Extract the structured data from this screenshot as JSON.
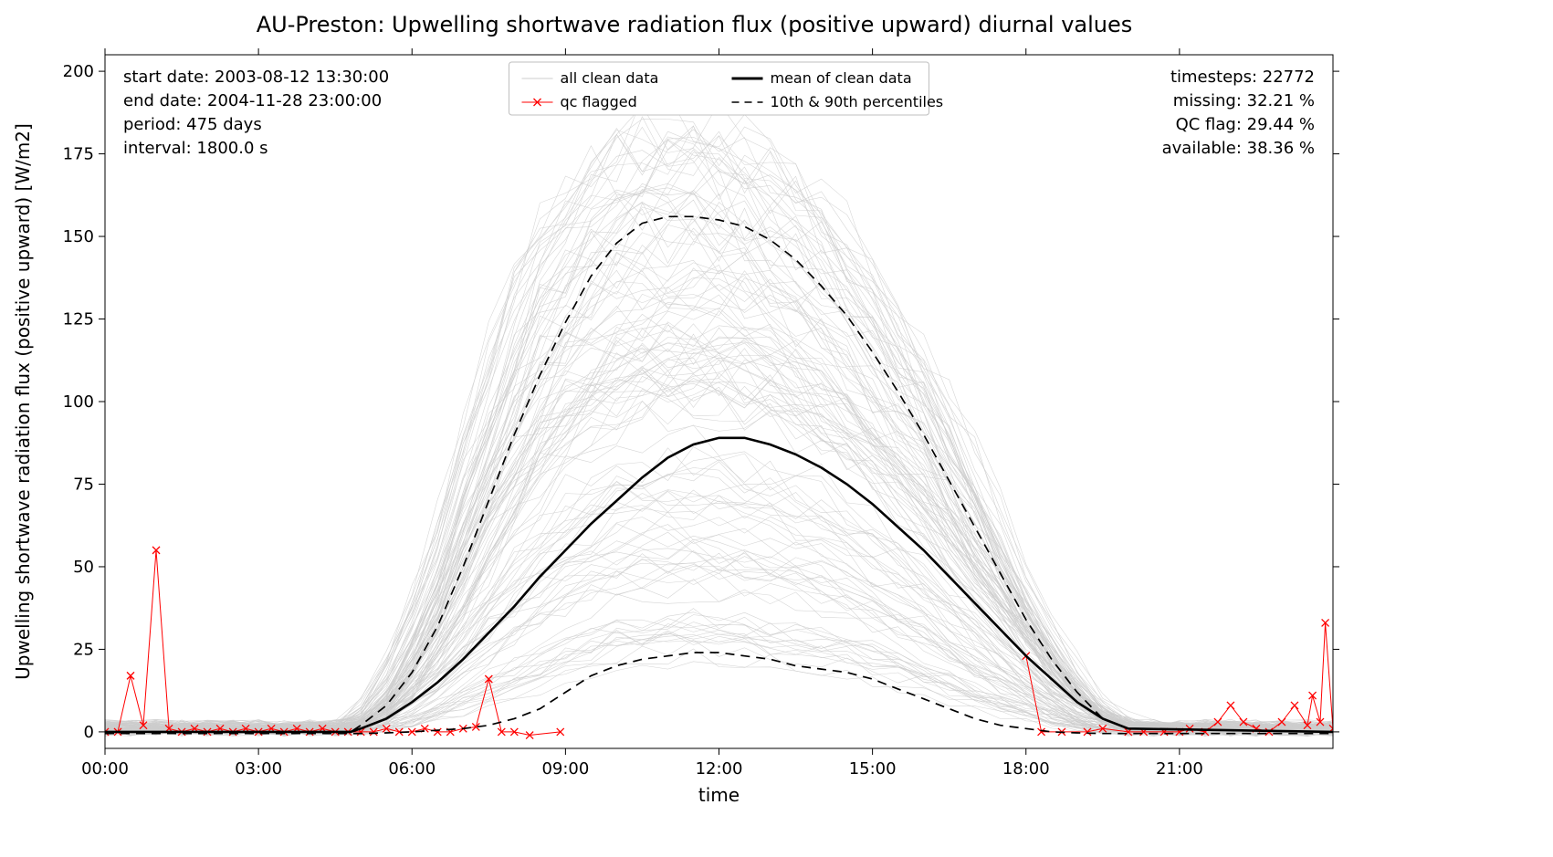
{
  "chart": {
    "type": "line",
    "title": "AU-Preston: Upwelling shortwave radiation flux (positive upward) diurnal values",
    "title_fontsize": 24,
    "xlabel": "time",
    "ylabel": "Upwelling shortwave radiation flux (positive upward) [W/m2]",
    "label_fontsize": 20,
    "tick_fontsize": 18,
    "background_color": "#ffffff",
    "plot_border_color": "#000000",
    "plot_border_width": 1,
    "x_ticks": [
      "00:00",
      "03:00",
      "06:00",
      "09:00",
      "12:00",
      "15:00",
      "18:00",
      "21:00"
    ],
    "x_tick_hours": [
      0,
      3,
      6,
      9,
      12,
      15,
      18,
      21
    ],
    "x_range_hours": [
      0,
      24
    ],
    "ylim": [
      -5,
      205
    ],
    "y_ticks": [
      0,
      25,
      50,
      75,
      100,
      125,
      150,
      175,
      200
    ],
    "info_left": [
      "start date: 2003-08-12 13:30:00",
      "end date: 2004-11-28 23:00:00",
      "period: 475 days",
      "interval: 1800.0 s"
    ],
    "info_right": [
      "timesteps: 22772",
      "missing: 32.21 %",
      "QC flag: 29.44 %",
      "available: 38.36 %"
    ],
    "info_fontsize": 18,
    "legend": {
      "items": [
        {
          "label": "all clean data",
          "type": "line",
          "color": "#cccccc",
          "width": 0.6
        },
        {
          "label": "qc flagged",
          "type": "line-marker",
          "color": "#ff0000",
          "width": 1,
          "marker": "x"
        },
        {
          "label": "mean of clean data",
          "type": "line",
          "color": "#000000",
          "width": 2.5
        },
        {
          "label": "10th & 90th percentiles",
          "type": "dashed",
          "color": "#000000",
          "width": 1.6
        }
      ],
      "fontsize": 16,
      "border_color": "#bfbfbf",
      "bg_color": "#ffffff"
    },
    "colors": {
      "clean": "#cccccc",
      "qc": "#ff0000",
      "mean": "#000000",
      "pct": "#000000"
    },
    "line_widths": {
      "clean": 0.55,
      "qc": 1.0,
      "mean": 2.6,
      "pct": 1.7
    },
    "envelope_upper": {
      "h": [
        0,
        4.8,
        5,
        5.5,
        6,
        6.5,
        7,
        7.5,
        8,
        8.5,
        9,
        9.5,
        10,
        10.5,
        11,
        11.5,
        12,
        12.5,
        13,
        13.5,
        14,
        14.5,
        15,
        15.5,
        16,
        16.5,
        17,
        17.5,
        18,
        18.5,
        19,
        19.5,
        20,
        24
      ],
      "y": [
        2,
        2,
        4,
        12,
        28,
        48,
        72,
        96,
        118,
        136,
        148,
        158,
        163,
        166,
        167,
        167,
        166,
        164,
        160,
        155,
        147,
        138,
        127,
        115,
        102,
        88,
        72,
        56,
        40,
        26,
        14,
        6,
        2,
        2
      ]
    },
    "mean_series": {
      "h": [
        0,
        4.8,
        5,
        5.5,
        6,
        6.5,
        7,
        7.5,
        8,
        8.5,
        9,
        9.5,
        10,
        10.5,
        11,
        11.5,
        12,
        12.5,
        13,
        13.5,
        14,
        14.5,
        15,
        15.5,
        16,
        16.5,
        17,
        17.5,
        18,
        18.5,
        19,
        19.5,
        20,
        24
      ],
      "y": [
        0,
        0,
        1,
        4,
        9,
        15,
        22,
        30,
        38,
        47,
        55,
        63,
        70,
        77,
        83,
        87,
        89,
        89,
        87,
        84,
        80,
        75,
        69,
        62,
        55,
        47,
        39,
        31,
        23,
        16,
        9,
        4,
        1,
        0
      ]
    },
    "pct90": {
      "h": [
        0,
        4.8,
        5,
        5.5,
        6,
        6.5,
        7,
        7.5,
        8,
        8.5,
        9,
        9.5,
        10,
        10.5,
        11,
        11.5,
        12,
        12.5,
        13,
        13.5,
        14,
        14.5,
        15,
        15.5,
        16,
        16.5,
        17,
        17.5,
        18,
        18.5,
        19,
        19.5,
        20,
        24
      ],
      "y": [
        0,
        0,
        2,
        8,
        18,
        32,
        50,
        70,
        90,
        108,
        124,
        138,
        148,
        154,
        156,
        156,
        155,
        153,
        149,
        143,
        135,
        126,
        115,
        103,
        90,
        76,
        62,
        48,
        34,
        22,
        12,
        4,
        1,
        0
      ]
    },
    "pct10": {
      "h": [
        0,
        4.8,
        5,
        5.5,
        6,
        6.5,
        7,
        7.5,
        8,
        8.5,
        9,
        9.5,
        10,
        10.5,
        11,
        11.5,
        12,
        12.5,
        13,
        13.5,
        14,
        14.5,
        15,
        15.5,
        16,
        16.5,
        17,
        17.5,
        18,
        18.5,
        19,
        19.5,
        20,
        24
      ],
      "y": [
        -0.5,
        -0.5,
        -0.5,
        -0.3,
        0,
        0.5,
        1,
        2,
        4,
        7,
        12,
        17,
        20,
        22,
        23,
        24,
        24,
        23,
        22,
        20,
        19,
        18,
        16,
        13,
        10,
        7,
        4,
        2,
        1,
        0,
        -0.3,
        -0.5,
        -0.5,
        -0.5
      ]
    },
    "qc_points": [
      {
        "h": 0,
        "y": 0
      },
      {
        "h": 0.25,
        "y": 0
      },
      {
        "h": 0.5,
        "y": 17
      },
      {
        "h": 0.75,
        "y": 2
      },
      {
        "h": 1.0,
        "y": 55
      },
      {
        "h": 1.25,
        "y": 1
      },
      {
        "h": 1.5,
        "y": 0
      },
      {
        "h": 1.75,
        "y": 1
      },
      {
        "h": 2.0,
        "y": 0
      },
      {
        "h": 2.25,
        "y": 1
      },
      {
        "h": 2.5,
        "y": 0
      },
      {
        "h": 2.75,
        "y": 1
      },
      {
        "h": 3.0,
        "y": 0
      },
      {
        "h": 3.25,
        "y": 1
      },
      {
        "h": 3.5,
        "y": 0
      },
      {
        "h": 3.75,
        "y": 1
      },
      {
        "h": 4.0,
        "y": 0
      },
      {
        "h": 4.25,
        "y": 1
      },
      {
        "h": 4.5,
        "y": 0
      },
      {
        "h": 4.75,
        "y": 0
      },
      {
        "h": 5.0,
        "y": 0
      },
      {
        "h": 5.25,
        "y": 0
      },
      {
        "h": 5.5,
        "y": 1
      },
      {
        "h": 5.75,
        "y": 0
      },
      {
        "h": 6.0,
        "y": 0
      },
      {
        "h": 6.25,
        "y": 1
      },
      {
        "h": 6.5,
        "y": 0
      },
      {
        "h": 6.75,
        "y": 0
      },
      {
        "h": 7.0,
        "y": 1
      },
      {
        "h": 7.25,
        "y": 1.5
      },
      {
        "h": 7.5,
        "y": 16
      },
      {
        "h": 7.75,
        "y": 0
      },
      {
        "h": 8.0,
        "y": 0
      },
      {
        "h": 8.3,
        "y": -1
      },
      {
        "h": 8.9,
        "y": 0
      },
      {
        "h": 18.0,
        "y": 23
      },
      {
        "h": 18.3,
        "y": 0
      },
      {
        "h": 18.7,
        "y": 0
      },
      {
        "h": 19.2,
        "y": 0
      },
      {
        "h": 19.5,
        "y": 1
      },
      {
        "h": 20.0,
        "y": 0
      },
      {
        "h": 20.3,
        "y": 0
      },
      {
        "h": 20.7,
        "y": 0
      },
      {
        "h": 21.0,
        "y": 0
      },
      {
        "h": 21.2,
        "y": 1
      },
      {
        "h": 21.5,
        "y": 0
      },
      {
        "h": 21.75,
        "y": 3
      },
      {
        "h": 22.0,
        "y": 8
      },
      {
        "h": 22.25,
        "y": 3
      },
      {
        "h": 22.5,
        "y": 1
      },
      {
        "h": 22.75,
        "y": 0
      },
      {
        "h": 23.0,
        "y": 3
      },
      {
        "h": 23.25,
        "y": 8
      },
      {
        "h": 23.5,
        "y": 2
      },
      {
        "h": 23.6,
        "y": 11
      },
      {
        "h": 23.75,
        "y": 3
      },
      {
        "h": 23.85,
        "y": 33
      },
      {
        "h": 24.0,
        "y": 1
      }
    ],
    "clean_count": 130,
    "clean_noise": 0.6,
    "random_seed": 42
  }
}
